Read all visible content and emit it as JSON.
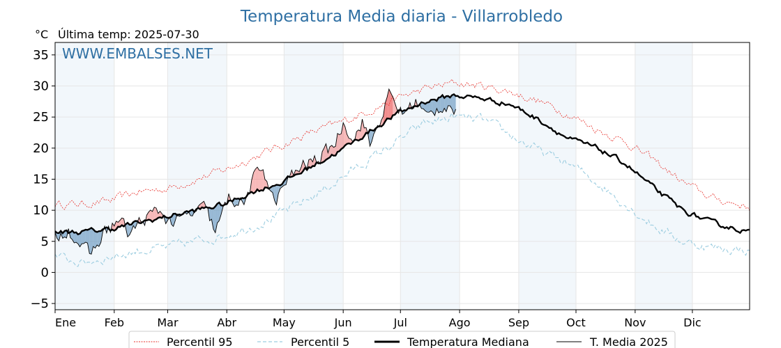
{
  "chart_data": {
    "type": "line",
    "title": "Temperatura Media diaria - Villarrobledo",
    "y_unit": "°C",
    "last_temp_label": "Última temp: 2025-07-30",
    "watermark": "WWW.EMBALSES.NET",
    "ylim": [
      -6,
      37
    ],
    "yticks": [
      -5,
      0,
      5,
      10,
      15,
      20,
      25,
      30,
      35
    ],
    "months": [
      "Ene",
      "Feb",
      "Mar",
      "Abr",
      "May",
      "Jun",
      "Jul",
      "Ago",
      "Sep",
      "Oct",
      "Nov",
      "Dic"
    ],
    "grid": true,
    "legend_position": "bottom",
    "colors": {
      "p95": "#e8302a",
      "p5": "#9ccde0",
      "median": "#000000",
      "t2025": "#000000",
      "above": "#f08080",
      "below": "#4d85b5",
      "band": "#e7f0f8"
    },
    "series": [
      {
        "name": "Percentil 95",
        "anchors": [
          [
            1,
            11
          ],
          [
            15,
            11
          ],
          [
            30,
            11.5
          ],
          [
            45,
            13
          ],
          [
            60,
            13.5
          ],
          [
            75,
            15
          ],
          [
            90,
            16.5
          ],
          [
            105,
            18.5
          ],
          [
            120,
            20.5
          ],
          [
            135,
            22.5
          ],
          [
            150,
            24
          ],
          [
            165,
            26
          ],
          [
            180,
            28
          ],
          [
            195,
            29.5
          ],
          [
            210,
            30.5
          ],
          [
            225,
            30
          ],
          [
            240,
            29
          ],
          [
            255,
            27.5
          ],
          [
            270,
            25.5
          ],
          [
            285,
            23
          ],
          [
            300,
            21
          ],
          [
            315,
            18
          ],
          [
            330,
            14.5
          ],
          [
            345,
            12
          ],
          [
            365,
            10.5
          ]
        ]
      },
      {
        "name": "Percentil 5",
        "anchors": [
          [
            1,
            2.5
          ],
          [
            15,
            1.5
          ],
          [
            30,
            2.5
          ],
          [
            45,
            3.5
          ],
          [
            60,
            4
          ],
          [
            75,
            5
          ],
          [
            90,
            6
          ],
          [
            105,
            7.5
          ],
          [
            120,
            9.5
          ],
          [
            135,
            12
          ],
          [
            150,
            15
          ],
          [
            165,
            18
          ],
          [
            180,
            21
          ],
          [
            195,
            24
          ],
          [
            210,
            25
          ],
          [
            225,
            24.5
          ],
          [
            240,
            22
          ],
          [
            255,
            19.5
          ],
          [
            270,
            17.5
          ],
          [
            285,
            14.5
          ],
          [
            300,
            11
          ],
          [
            315,
            7.5
          ],
          [
            330,
            5
          ],
          [
            345,
            4
          ],
          [
            365,
            3.5
          ]
        ]
      },
      {
        "name": "Temperatura Mediana",
        "anchors": [
          [
            1,
            6.5
          ],
          [
            15,
            6.5
          ],
          [
            30,
            7
          ],
          [
            45,
            8
          ],
          [
            60,
            9
          ],
          [
            75,
            10
          ],
          [
            90,
            11
          ],
          [
            105,
            13
          ],
          [
            120,
            14.5
          ],
          [
            135,
            17
          ],
          [
            150,
            19.5
          ],
          [
            165,
            22.5
          ],
          [
            180,
            25.5
          ],
          [
            195,
            27.5
          ],
          [
            210,
            28.5
          ],
          [
            225,
            28
          ],
          [
            240,
            27
          ],
          [
            255,
            24.5
          ],
          [
            270,
            21.5
          ],
          [
            285,
            20
          ],
          [
            300,
            17.5
          ],
          [
            315,
            13.5
          ],
          [
            330,
            10
          ],
          [
            345,
            8
          ],
          [
            365,
            6.5
          ]
        ]
      },
      {
        "name": "T. Media 2025",
        "anchors": [
          [
            1,
            5.5
          ],
          [
            8,
            7
          ],
          [
            15,
            4
          ],
          [
            20,
            3
          ],
          [
            27,
            6.5
          ],
          [
            35,
            8.5
          ],
          [
            40,
            6
          ],
          [
            45,
            8
          ],
          [
            55,
            10
          ],
          [
            62,
            8
          ],
          [
            70,
            9
          ],
          [
            80,
            10.5
          ],
          [
            85,
            6.5
          ],
          [
            92,
            12
          ],
          [
            100,
            11
          ],
          [
            105,
            15
          ],
          [
            110,
            17
          ],
          [
            116,
            11
          ],
          [
            122,
            14.5
          ],
          [
            130,
            17
          ],
          [
            140,
            18.5
          ],
          [
            148,
            21
          ],
          [
            152,
            24
          ],
          [
            158,
            21.5
          ],
          [
            162,
            24.5
          ],
          [
            166,
            20.5
          ],
          [
            172,
            25
          ],
          [
            176,
            28.5
          ],
          [
            183,
            25.5
          ],
          [
            190,
            27.5
          ],
          [
            196,
            25
          ],
          [
            202,
            26.5
          ],
          [
            208,
            27
          ],
          [
            211,
            25.5
          ]
        ]
      }
    ]
  },
  "legend": [
    {
      "label": "Percentil 95"
    },
    {
      "label": "Percentil 5"
    },
    {
      "label": "Temperatura Mediana"
    },
    {
      "label": "T. Media 2025"
    }
  ]
}
